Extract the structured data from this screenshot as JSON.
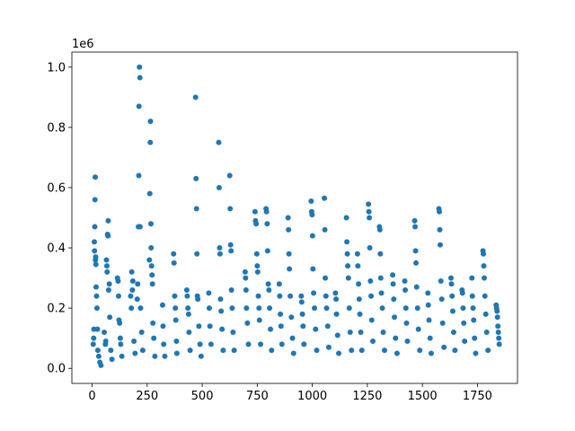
{
  "chart_data": {
    "type": "scatter",
    "title": "",
    "xlabel": "",
    "ylabel": "",
    "y_offset_text": "1e6",
    "xlim": [
      -92,
      1932
    ],
    "ylim": [
      -50000,
      1050000
    ],
    "x_ticks": [
      {
        "value": 0,
        "label": "0"
      },
      {
        "value": 250,
        "label": "250"
      },
      {
        "value": 500,
        "label": "500"
      },
      {
        "value": 750,
        "label": "750"
      },
      {
        "value": 1000,
        "label": "1000"
      },
      {
        "value": 1250,
        "label": "1250"
      },
      {
        "value": 1500,
        "label": "1500"
      },
      {
        "value": 1750,
        "label": "1750"
      }
    ],
    "y_ticks": [
      {
        "value": 0,
        "label": "0.0"
      },
      {
        "value": 200000,
        "label": "0.2"
      },
      {
        "value": 400000,
        "label": "0.4"
      },
      {
        "value": 600000,
        "label": "0.6"
      },
      {
        "value": 800000,
        "label": "0.8"
      },
      {
        "value": 1000000,
        "label": "1.0"
      }
    ],
    "grid": false,
    "series": [
      {
        "color": "#1f77b4",
        "points": [
          [
            5,
            80000
          ],
          [
            7,
            100000
          ],
          [
            8,
            130000
          ],
          [
            10,
            420000
          ],
          [
            11,
            390000
          ],
          [
            12,
            470000
          ],
          [
            13,
            560000
          ],
          [
            14,
            635000
          ],
          [
            15,
            360000
          ],
          [
            16,
            370000
          ],
          [
            17,
            345000
          ],
          [
            18,
            270000
          ],
          [
            20,
            240000
          ],
          [
            22,
            200000
          ],
          [
            24,
            130000
          ],
          [
            26,
            60000
          ],
          [
            30,
            40000
          ],
          [
            35,
            20000
          ],
          [
            40,
            10000
          ],
          [
            55,
            120000
          ],
          [
            60,
            80000
          ],
          [
            62,
            90000
          ],
          [
            65,
            360000
          ],
          [
            67,
            340000
          ],
          [
            68,
            320000
          ],
          [
            70,
            445000
          ],
          [
            72,
            440000
          ],
          [
            73,
            490000
          ],
          [
            75,
            260000
          ],
          [
            78,
            280000
          ],
          [
            80,
            170000
          ],
          [
            85,
            60000
          ],
          [
            90,
            30000
          ],
          [
            115,
            300000
          ],
          [
            118,
            290000
          ],
          [
            120,
            240000
          ],
          [
            122,
            160000
          ],
          [
            125,
            150000
          ],
          [
            128,
            100000
          ],
          [
            130,
            80000
          ],
          [
            135,
            40000
          ],
          [
            175,
            240000
          ],
          [
            178,
            200000
          ],
          [
            180,
            320000
          ],
          [
            183,
            260000
          ],
          [
            185,
            290000
          ],
          [
            190,
            90000
          ],
          [
            195,
            50000
          ],
          [
            205,
            230000
          ],
          [
            207,
            280000
          ],
          [
            210,
            470000
          ],
          [
            212,
            640000
          ],
          [
            213,
            870000
          ],
          [
            215,
            1000000
          ],
          [
            217,
            965000
          ],
          [
            218,
            470000
          ],
          [
            220,
            200000
          ],
          [
            225,
            120000
          ],
          [
            230,
            60000
          ],
          [
            260,
            360000
          ],
          [
            262,
            580000
          ],
          [
            264,
            750000
          ],
          [
            265,
            820000
          ],
          [
            267,
            480000
          ],
          [
            268,
            400000
          ],
          [
            270,
            340000
          ],
          [
            272,
            310000
          ],
          [
            274,
            280000
          ],
          [
            276,
            150000
          ],
          [
            280,
            100000
          ],
          [
            285,
            40000
          ],
          [
            320,
            210000
          ],
          [
            322,
            140000
          ],
          [
            325,
            80000
          ],
          [
            330,
            40000
          ],
          [
            370,
            380000
          ],
          [
            372,
            350000
          ],
          [
            375,
            240000
          ],
          [
            378,
            200000
          ],
          [
            380,
            160000
          ],
          [
            383,
            90000
          ],
          [
            385,
            50000
          ],
          [
            430,
            260000
          ],
          [
            432,
            240000
          ],
          [
            435,
            200000
          ],
          [
            438,
            180000
          ],
          [
            440,
            120000
          ],
          [
            445,
            60000
          ],
          [
            470,
            900000
          ],
          [
            472,
            630000
          ],
          [
            474,
            530000
          ],
          [
            476,
            380000
          ],
          [
            478,
            240000
          ],
          [
            480,
            230000
          ],
          [
            485,
            140000
          ],
          [
            490,
            80000
          ],
          [
            495,
            40000
          ],
          [
            530,
            250000
          ],
          [
            532,
            200000
          ],
          [
            535,
            140000
          ],
          [
            540,
            80000
          ],
          [
            575,
            750000
          ],
          [
            577,
            600000
          ],
          [
            579,
            400000
          ],
          [
            581,
            380000
          ],
          [
            583,
            230000
          ],
          [
            586,
            190000
          ],
          [
            590,
            130000
          ],
          [
            595,
            60000
          ],
          [
            625,
            640000
          ],
          [
            627,
            530000
          ],
          [
            629,
            410000
          ],
          [
            631,
            390000
          ],
          [
            633,
            260000
          ],
          [
            636,
            200000
          ],
          [
            640,
            120000
          ],
          [
            645,
            60000
          ],
          [
            695,
            320000
          ],
          [
            697,
            300000
          ],
          [
            699,
            260000
          ],
          [
            701,
            200000
          ],
          [
            705,
            150000
          ],
          [
            710,
            80000
          ],
          [
            740,
            520000
          ],
          [
            742,
            490000
          ],
          [
            745,
            480000
          ],
          [
            748,
            380000
          ],
          [
            750,
            340000
          ],
          [
            752,
            320000
          ],
          [
            755,
            240000
          ],
          [
            758,
            200000
          ],
          [
            760,
            160000
          ],
          [
            765,
            80000
          ],
          [
            790,
            530000
          ],
          [
            792,
            520000
          ],
          [
            795,
            480000
          ],
          [
            797,
            390000
          ],
          [
            800,
            280000
          ],
          [
            803,
            260000
          ],
          [
            806,
            200000
          ],
          [
            810,
            130000
          ],
          [
            815,
            60000
          ],
          [
            850,
            280000
          ],
          [
            852,
            240000
          ],
          [
            855,
            180000
          ],
          [
            858,
            140000
          ],
          [
            862,
            80000
          ],
          [
            890,
            500000
          ],
          [
            892,
            460000
          ],
          [
            894,
            380000
          ],
          [
            896,
            330000
          ],
          [
            900,
            240000
          ],
          [
            905,
            170000
          ],
          [
            910,
            100000
          ],
          [
            915,
            50000
          ],
          [
            950,
            240000
          ],
          [
            952,
            220000
          ],
          [
            955,
            180000
          ],
          [
            958,
            140000
          ],
          [
            962,
            80000
          ],
          [
            995,
            555000
          ],
          [
            997,
            520000
          ],
          [
            999,
            510000
          ],
          [
            1001,
            440000
          ],
          [
            1003,
            330000
          ],
          [
            1006,
            250000
          ],
          [
            1010,
            200000
          ],
          [
            1015,
            130000
          ],
          [
            1020,
            60000
          ],
          [
            1055,
            565000
          ],
          [
            1057,
            460000
          ],
          [
            1059,
            300000
          ],
          [
            1062,
            240000
          ],
          [
            1065,
            200000
          ],
          [
            1070,
            140000
          ],
          [
            1075,
            70000
          ],
          [
            1105,
            250000
          ],
          [
            1108,
            230000
          ],
          [
            1110,
            180000
          ],
          [
            1115,
            110000
          ],
          [
            1120,
            50000
          ],
          [
            1155,
            500000
          ],
          [
            1157,
            420000
          ],
          [
            1159,
            380000
          ],
          [
            1161,
            340000
          ],
          [
            1164,
            300000
          ],
          [
            1168,
            200000
          ],
          [
            1172,
            120000
          ],
          [
            1178,
            60000
          ],
          [
            1205,
            380000
          ],
          [
            1207,
            340000
          ],
          [
            1210,
            280000
          ],
          [
            1213,
            230000
          ],
          [
            1216,
            180000
          ],
          [
            1220,
            120000
          ],
          [
            1225,
            60000
          ],
          [
            1255,
            545000
          ],
          [
            1257,
            520000
          ],
          [
            1259,
            500000
          ],
          [
            1261,
            400000
          ],
          [
            1264,
            290000
          ],
          [
            1267,
            240000
          ],
          [
            1270,
            160000
          ],
          [
            1275,
            90000
          ],
          [
            1305,
            470000
          ],
          [
            1307,
            460000
          ],
          [
            1309,
            380000
          ],
          [
            1311,
            300000
          ],
          [
            1314,
            250000
          ],
          [
            1318,
            200000
          ],
          [
            1322,
            120000
          ],
          [
            1328,
            60000
          ],
          [
            1365,
            310000
          ],
          [
            1367,
            280000
          ],
          [
            1370,
            230000
          ],
          [
            1373,
            170000
          ],
          [
            1378,
            100000
          ],
          [
            1385,
            50000
          ],
          [
            1420,
            290000
          ],
          [
            1422,
            260000
          ],
          [
            1425,
            200000
          ],
          [
            1428,
            150000
          ],
          [
            1432,
            90000
          ],
          [
            1465,
            490000
          ],
          [
            1467,
            470000
          ],
          [
            1469,
            390000
          ],
          [
            1471,
            350000
          ],
          [
            1474,
            270000
          ],
          [
            1478,
            200000
          ],
          [
            1482,
            130000
          ],
          [
            1488,
            60000
          ],
          [
            1525,
            250000
          ],
          [
            1527,
            210000
          ],
          [
            1530,
            160000
          ],
          [
            1535,
            100000
          ],
          [
            1540,
            50000
          ],
          [
            1575,
            530000
          ],
          [
            1577,
            520000
          ],
          [
            1579,
            460000
          ],
          [
            1581,
            410000
          ],
          [
            1584,
            290000
          ],
          [
            1588,
            230000
          ],
          [
            1592,
            150000
          ],
          [
            1598,
            70000
          ],
          [
            1630,
            300000
          ],
          [
            1632,
            280000
          ],
          [
            1635,
            240000
          ],
          [
            1638,
            190000
          ],
          [
            1642,
            120000
          ],
          [
            1648,
            60000
          ],
          [
            1680,
            260000
          ],
          [
            1682,
            250000
          ],
          [
            1685,
            200000
          ],
          [
            1688,
            150000
          ],
          [
            1692,
            90000
          ],
          [
            1725,
            300000
          ],
          [
            1727,
            240000
          ],
          [
            1730,
            200000
          ],
          [
            1733,
            160000
          ],
          [
            1737,
            100000
          ],
          [
            1742,
            50000
          ],
          [
            1775,
            390000
          ],
          [
            1777,
            380000
          ],
          [
            1779,
            340000
          ],
          [
            1781,
            300000
          ],
          [
            1784,
            240000
          ],
          [
            1788,
            180000
          ],
          [
            1792,
            120000
          ],
          [
            1798,
            60000
          ],
          [
            1835,
            210000
          ],
          [
            1837,
            200000
          ],
          [
            1839,
            190000
          ],
          [
            1841,
            170000
          ],
          [
            1843,
            140000
          ],
          [
            1845,
            120000
          ],
          [
            1847,
            100000
          ],
          [
            1849,
            80000
          ]
        ]
      }
    ]
  }
}
